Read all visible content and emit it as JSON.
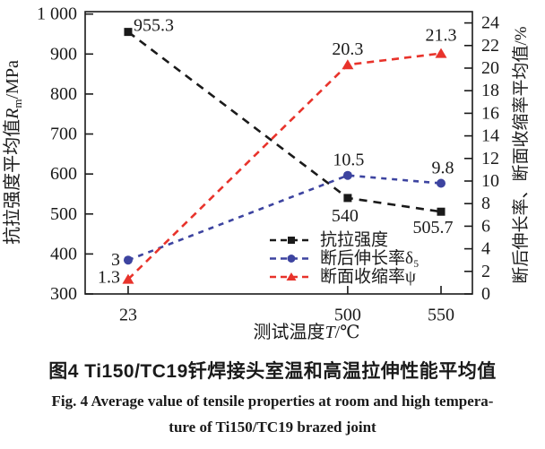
{
  "figure": {
    "caption_cn": "图4  Ti150/TC19钎焊接头室温和高温拉伸性能平均值",
    "caption_en_line1": "Fig. 4  Average value of tensile properties at room and high tempera-",
    "caption_en_line2": "ture of Ti150/TC19 brazed joint"
  },
  "chart_data": {
    "type": "line",
    "title": "",
    "x_axis": {
      "title_prefix": "测试温度",
      "title_var": "T",
      "title_unit": "/℃",
      "categories": [
        23,
        500,
        550
      ],
      "tick_labels": [
        "23",
        "500",
        "550"
      ]
    },
    "left_axis": {
      "title_prefix": "抗拉强度平均值",
      "title_var": "R",
      "title_sub": "m",
      "title_unit": "/MPa",
      "min": 300,
      "max": 1006,
      "tick_values": [
        300,
        400,
        500,
        600,
        700,
        800,
        900,
        1000
      ],
      "tick_labels": [
        "300",
        "400",
        "500",
        "600",
        "700",
        "800",
        "900",
        "1 000"
      ]
    },
    "right_axis": {
      "title": "断后伸长率、断面收缩率平均值/%",
      "min": 0,
      "max": 25,
      "tick_values": [
        0,
        2,
        4,
        6,
        8,
        10,
        12,
        14,
        16,
        18,
        20,
        22,
        24
      ],
      "tick_labels": [
        "0",
        "2",
        "4",
        "6",
        "8",
        "10",
        "12",
        "14",
        "16",
        "18",
        "20",
        "22",
        "24"
      ]
    },
    "grid": false,
    "legend_position": "inside-bottom-right",
    "series": [
      {
        "key": "tensile-strength",
        "name": "抗拉强度",
        "axis": "left",
        "color": "#1a1a1a",
        "marker": "square",
        "dash": "9 7",
        "values": [
          955.3,
          540,
          505.7
        ],
        "point_labels": [
          "955.3",
          "540",
          "505.7"
        ],
        "label_anchors": [
          "start",
          "middle",
          "middle"
        ],
        "label_offsets": [
          [
            6,
            -7
          ],
          [
            -3,
            20
          ],
          [
            -9,
            18
          ]
        ]
      },
      {
        "key": "elongation",
        "name": "断后伸长率δ₅",
        "axis": "right",
        "color": "#3d44a0",
        "marker": "circle",
        "dash": "6 6",
        "values": [
          3,
          10.5,
          9.8
        ],
        "point_labels": [
          "3",
          "10.5",
          "9.8"
        ],
        "label_anchors": [
          "end",
          "middle",
          "middle"
        ],
        "label_offsets": [
          [
            -9,
            0
          ],
          [
            1,
            -17
          ],
          [
            2,
            -17
          ]
        ]
      },
      {
        "key": "reduction-of-area",
        "name": "断面收缩率ψ",
        "axis": "right",
        "color": "#e8332b",
        "marker": "triangle",
        "dash": "8 6",
        "values": [
          1.3,
          20.3,
          21.3
        ],
        "point_labels": [
          "1.3",
          "20.3",
          "21.3"
        ],
        "label_anchors": [
          "end",
          "middle",
          "middle"
        ],
        "label_offsets": [
          [
            -9,
            -2
          ],
          [
            0,
            -17
          ],
          [
            0,
            -20
          ]
        ]
      }
    ]
  }
}
